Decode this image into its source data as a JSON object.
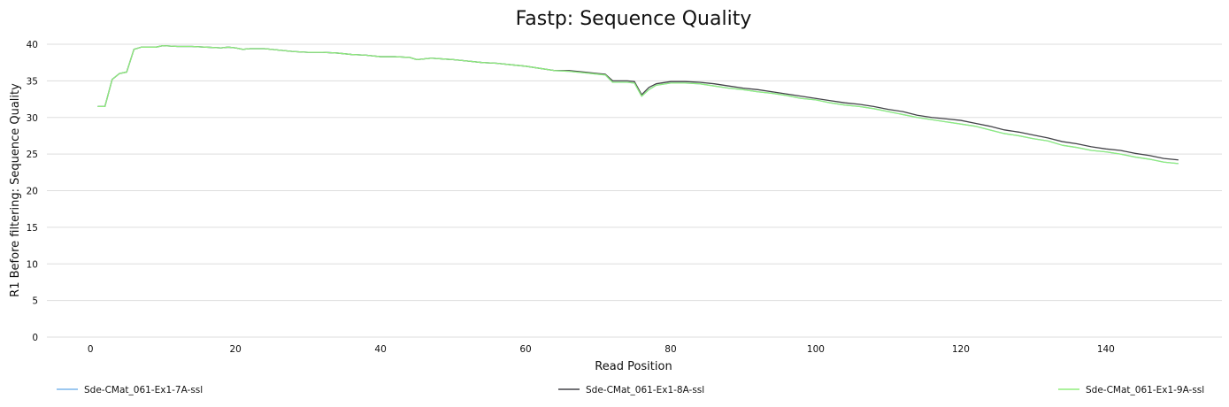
{
  "chart_data": {
    "type": "line",
    "title": "Fastp: Sequence Quality",
    "xlabel": "Read Position",
    "ylabel": "R1 Before filtering: Sequence Quality",
    "xlim": [
      -6,
      156
    ],
    "ylim": [
      0,
      40
    ],
    "xticks": [
      0,
      20,
      40,
      60,
      80,
      100,
      120,
      140
    ],
    "yticks": [
      0,
      5,
      10,
      15,
      20,
      25,
      30,
      35,
      40
    ],
    "grid": "horizontal",
    "legend_position": "bottom",
    "series": [
      {
        "name": "Sde-CMat_061-Ex1-7A-ssl",
        "color": "#7cb5ec",
        "points": [
          [
            1,
            31.5
          ],
          [
            2,
            31.5
          ],
          [
            3,
            35.2
          ],
          [
            4,
            36.0
          ],
          [
            5,
            36.2
          ],
          [
            6,
            39.3
          ],
          [
            7,
            39.6
          ],
          [
            8,
            39.6
          ],
          [
            9,
            39.6
          ],
          [
            10,
            39.8
          ],
          [
            12,
            39.7
          ],
          [
            14,
            39.7
          ],
          [
            16,
            39.6
          ],
          [
            18,
            39.5
          ],
          [
            19,
            39.6
          ],
          [
            20,
            39.5
          ],
          [
            21,
            39.3
          ],
          [
            22,
            39.4
          ],
          [
            24,
            39.4
          ],
          [
            26,
            39.2
          ],
          [
            28,
            39.0
          ],
          [
            30,
            38.9
          ],
          [
            32,
            38.9
          ],
          [
            34,
            38.8
          ],
          [
            36,
            38.6
          ],
          [
            38,
            38.5
          ],
          [
            40,
            38.3
          ],
          [
            42,
            38.3
          ],
          [
            44,
            38.2
          ],
          [
            45,
            37.9
          ],
          [
            47,
            38.1
          ],
          [
            50,
            37.9
          ],
          [
            52,
            37.7
          ],
          [
            54,
            37.5
          ],
          [
            56,
            37.4
          ],
          [
            58,
            37.2
          ],
          [
            60,
            37.0
          ],
          [
            62,
            36.7
          ],
          [
            64,
            36.4
          ],
          [
            66,
            36.3
          ],
          [
            68,
            36.1
          ],
          [
            70,
            35.9
          ],
          [
            71,
            35.8
          ],
          [
            72,
            34.8
          ],
          [
            74,
            34.8
          ],
          [
            75,
            34.7
          ],
          [
            76,
            32.9
          ],
          [
            77,
            33.8
          ],
          [
            78,
            34.4
          ],
          [
            80,
            34.7
          ],
          [
            82,
            34.7
          ],
          [
            84,
            34.6
          ],
          [
            86,
            34.3
          ],
          [
            88,
            34.0
          ],
          [
            90,
            33.8
          ],
          [
            92,
            33.5
          ],
          [
            94,
            33.3
          ],
          [
            96,
            33.0
          ],
          [
            98,
            32.6
          ],
          [
            100,
            32.4
          ],
          [
            102,
            32.0
          ],
          [
            104,
            31.7
          ],
          [
            106,
            31.5
          ],
          [
            108,
            31.2
          ],
          [
            110,
            30.8
          ],
          [
            112,
            30.4
          ],
          [
            114,
            30.0
          ],
          [
            116,
            29.7
          ],
          [
            118,
            29.4
          ],
          [
            120,
            29.1
          ],
          [
            122,
            28.8
          ],
          [
            124,
            28.3
          ],
          [
            126,
            27.8
          ],
          [
            128,
            27.5
          ],
          [
            130,
            27.1
          ],
          [
            132,
            26.8
          ],
          [
            134,
            26.2
          ],
          [
            136,
            25.9
          ],
          [
            138,
            25.5
          ],
          [
            140,
            25.3
          ],
          [
            142,
            25.0
          ],
          [
            144,
            24.6
          ],
          [
            146,
            24.3
          ],
          [
            148,
            23.9
          ],
          [
            150,
            23.7
          ]
        ]
      },
      {
        "name": "Sde-CMat_061-Ex1-8A-ssl",
        "color": "#434348",
        "points": [
          [
            1,
            31.5
          ],
          [
            2,
            31.5
          ],
          [
            3,
            35.2
          ],
          [
            4,
            36.0
          ],
          [
            5,
            36.2
          ],
          [
            6,
            39.3
          ],
          [
            7,
            39.6
          ],
          [
            8,
            39.6
          ],
          [
            9,
            39.6
          ],
          [
            10,
            39.8
          ],
          [
            12,
            39.7
          ],
          [
            14,
            39.7
          ],
          [
            16,
            39.6
          ],
          [
            18,
            39.5
          ],
          [
            19,
            39.6
          ],
          [
            20,
            39.5
          ],
          [
            21,
            39.3
          ],
          [
            22,
            39.4
          ],
          [
            24,
            39.4
          ],
          [
            26,
            39.2
          ],
          [
            28,
            39.0
          ],
          [
            30,
            38.9
          ],
          [
            32,
            38.9
          ],
          [
            34,
            38.8
          ],
          [
            36,
            38.6
          ],
          [
            38,
            38.5
          ],
          [
            40,
            38.3
          ],
          [
            42,
            38.3
          ],
          [
            44,
            38.2
          ],
          [
            45,
            37.9
          ],
          [
            47,
            38.1
          ],
          [
            50,
            37.9
          ],
          [
            52,
            37.7
          ],
          [
            54,
            37.5
          ],
          [
            56,
            37.4
          ],
          [
            58,
            37.2
          ],
          [
            60,
            37.0
          ],
          [
            62,
            36.7
          ],
          [
            64,
            36.4
          ],
          [
            66,
            36.4
          ],
          [
            68,
            36.2
          ],
          [
            70,
            36.0
          ],
          [
            71,
            35.9
          ],
          [
            72,
            35.0
          ],
          [
            74,
            35.0
          ],
          [
            75,
            34.9
          ],
          [
            76,
            33.1
          ],
          [
            77,
            34.1
          ],
          [
            78,
            34.6
          ],
          [
            80,
            34.9
          ],
          [
            82,
            34.9
          ],
          [
            84,
            34.8
          ],
          [
            86,
            34.6
          ],
          [
            88,
            34.3
          ],
          [
            90,
            34.0
          ],
          [
            92,
            33.8
          ],
          [
            94,
            33.5
          ],
          [
            96,
            33.2
          ],
          [
            98,
            32.9
          ],
          [
            100,
            32.6
          ],
          [
            102,
            32.3
          ],
          [
            104,
            32.0
          ],
          [
            106,
            31.8
          ],
          [
            108,
            31.5
          ],
          [
            110,
            31.1
          ],
          [
            112,
            30.8
          ],
          [
            114,
            30.3
          ],
          [
            116,
            30.0
          ],
          [
            118,
            29.8
          ],
          [
            120,
            29.6
          ],
          [
            122,
            29.2
          ],
          [
            124,
            28.8
          ],
          [
            126,
            28.3
          ],
          [
            128,
            28.0
          ],
          [
            130,
            27.6
          ],
          [
            132,
            27.2
          ],
          [
            134,
            26.7
          ],
          [
            136,
            26.4
          ],
          [
            138,
            26.0
          ],
          [
            140,
            25.7
          ],
          [
            142,
            25.5
          ],
          [
            144,
            25.1
          ],
          [
            146,
            24.8
          ],
          [
            148,
            24.4
          ],
          [
            150,
            24.2
          ]
        ]
      },
      {
        "name": "Sde-CMat_061-Ex1-9A-ssl",
        "color": "#90ed7d",
        "points": [
          [
            1,
            31.5
          ],
          [
            2,
            31.5
          ],
          [
            3,
            35.2
          ],
          [
            4,
            36.0
          ],
          [
            5,
            36.2
          ],
          [
            6,
            39.3
          ],
          [
            7,
            39.6
          ],
          [
            8,
            39.6
          ],
          [
            9,
            39.6
          ],
          [
            10,
            39.8
          ],
          [
            12,
            39.7
          ],
          [
            14,
            39.7
          ],
          [
            16,
            39.6
          ],
          [
            18,
            39.5
          ],
          [
            19,
            39.6
          ],
          [
            20,
            39.5
          ],
          [
            21,
            39.3
          ],
          [
            22,
            39.4
          ],
          [
            24,
            39.4
          ],
          [
            26,
            39.2
          ],
          [
            28,
            39.0
          ],
          [
            30,
            38.9
          ],
          [
            32,
            38.9
          ],
          [
            34,
            38.8
          ],
          [
            36,
            38.6
          ],
          [
            38,
            38.5
          ],
          [
            40,
            38.3
          ],
          [
            42,
            38.3
          ],
          [
            44,
            38.2
          ],
          [
            45,
            37.9
          ],
          [
            47,
            38.1
          ],
          [
            50,
            37.9
          ],
          [
            52,
            37.7
          ],
          [
            54,
            37.5
          ],
          [
            56,
            37.4
          ],
          [
            58,
            37.2
          ],
          [
            60,
            37.0
          ],
          [
            62,
            36.7
          ],
          [
            64,
            36.4
          ],
          [
            66,
            36.3
          ],
          [
            68,
            36.1
          ],
          [
            70,
            35.9
          ],
          [
            71,
            35.8
          ],
          [
            72,
            34.8
          ],
          [
            74,
            34.8
          ],
          [
            75,
            34.7
          ],
          [
            76,
            32.9
          ],
          [
            77,
            33.8
          ],
          [
            78,
            34.4
          ],
          [
            80,
            34.7
          ],
          [
            82,
            34.7
          ],
          [
            84,
            34.6
          ],
          [
            86,
            34.3
          ],
          [
            88,
            34.0
          ],
          [
            90,
            33.8
          ],
          [
            92,
            33.5
          ],
          [
            94,
            33.3
          ],
          [
            96,
            33.0
          ],
          [
            98,
            32.6
          ],
          [
            100,
            32.4
          ],
          [
            102,
            32.0
          ],
          [
            104,
            31.7
          ],
          [
            106,
            31.5
          ],
          [
            108,
            31.2
          ],
          [
            110,
            30.8
          ],
          [
            112,
            30.4
          ],
          [
            114,
            30.0
          ],
          [
            116,
            29.7
          ],
          [
            118,
            29.4
          ],
          [
            120,
            29.1
          ],
          [
            122,
            28.8
          ],
          [
            124,
            28.3
          ],
          [
            126,
            27.8
          ],
          [
            128,
            27.5
          ],
          [
            130,
            27.1
          ],
          [
            132,
            26.8
          ],
          [
            134,
            26.2
          ],
          [
            136,
            25.9
          ],
          [
            138,
            25.5
          ],
          [
            140,
            25.3
          ],
          [
            142,
            25.0
          ],
          [
            144,
            24.6
          ],
          [
            146,
            24.3
          ],
          [
            148,
            23.9
          ],
          [
            150,
            23.7
          ]
        ]
      }
    ]
  }
}
